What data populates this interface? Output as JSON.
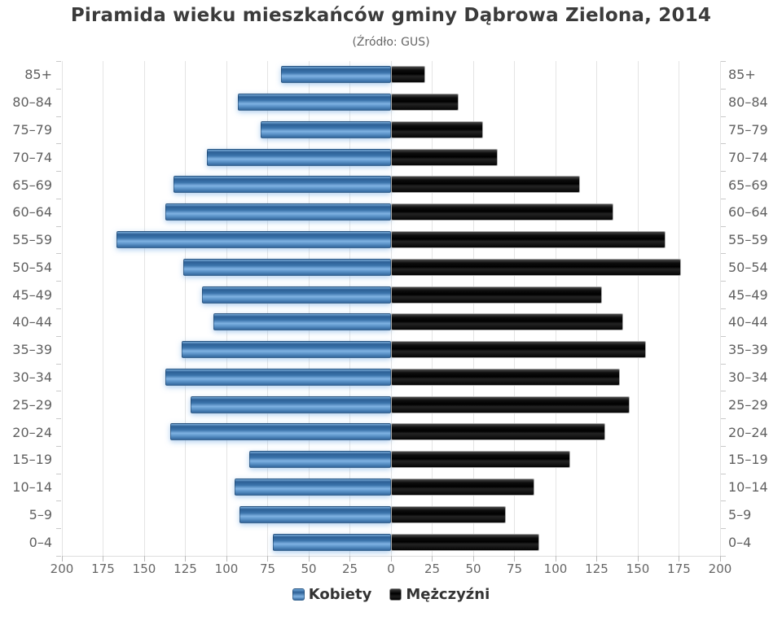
{
  "title": "Piramida wieku mieszkańców gminy Dąbrowa Zielona, 2014",
  "subtitle": "(Źródło: GUS)",
  "colors": {
    "women_bar": "#4181b6",
    "men_bar": "#111111",
    "gridline": "#e4e4e4",
    "axis_text": "#666666",
    "title_text": "#3b3b3b"
  },
  "chart_data": {
    "type": "bar",
    "variant": "population-pyramid",
    "title": "Piramida wieku mieszkańców gminy Dąbrowa Zielona, 2014",
    "subtitle": "(Źródło: GUS)",
    "categories": [
      "85+",
      "80–84",
      "75–79",
      "70–74",
      "65–69",
      "60–64",
      "55–59",
      "50–54",
      "45–49",
      "40–44",
      "35–39",
      "30–34",
      "25–29",
      "20–24",
      "15–19",
      "10–14",
      "5–9",
      "0–4"
    ],
    "series": [
      {
        "name": "Kobiety",
        "side": "left",
        "color": "#4181b6",
        "values": [
          67,
          93,
          79,
          112,
          132,
          137,
          167,
          126,
          115,
          108,
          127,
          137,
          122,
          134,
          86,
          95,
          92,
          72
        ]
      },
      {
        "name": "Mężczyźni",
        "side": "right",
        "color": "#111111",
        "values": [
          21,
          41,
          56,
          65,
          115,
          135,
          167,
          176,
          128,
          141,
          155,
          139,
          145,
          130,
          109,
          87,
          70,
          90
        ]
      }
    ],
    "axis_max": 200,
    "tick_step": 25,
    "x_tick_labels": [
      "200",
      "175",
      "150",
      "125",
      "100",
      "75",
      "50",
      "25",
      "0",
      "25",
      "50",
      "75",
      "100",
      "125",
      "150",
      "175",
      "200"
    ],
    "grid": true,
    "legend_position": "bottom"
  }
}
